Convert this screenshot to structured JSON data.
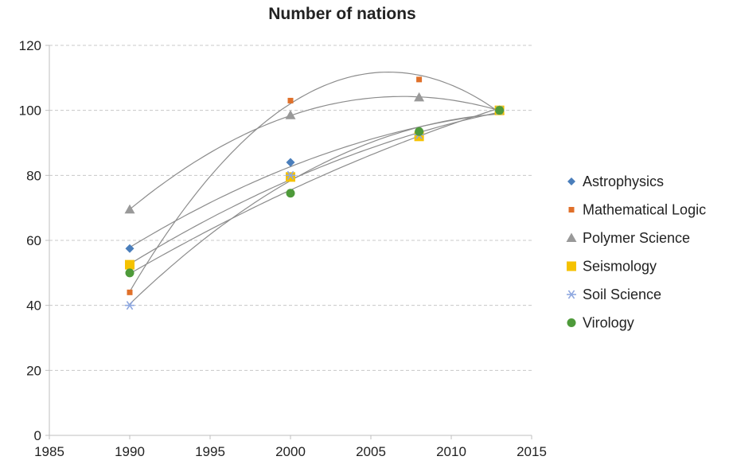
{
  "chart_data": {
    "type": "scatter",
    "title": "Number of nations",
    "xlabel": "",
    "ylabel": "",
    "xlim": [
      1985,
      2015
    ],
    "ylim": [
      0,
      120
    ],
    "xticks": [
      1985,
      1990,
      1995,
      2000,
      2005,
      2010,
      2015
    ],
    "yticks": [
      0,
      20,
      40,
      60,
      80,
      100,
      120
    ],
    "grid": "horizontal dashed",
    "legend_position": "right",
    "trendline": "polynomial order 2",
    "x": [
      1990,
      2000,
      2008,
      2013
    ],
    "series": [
      {
        "name": "Astrophysics",
        "marker": "diamond",
        "color": "#4a7ebb",
        "values": [
          57.5,
          84,
          93,
          100
        ]
      },
      {
        "name": "Mathematical Logic",
        "marker": "square-small",
        "color": "#e0702a",
        "values": [
          44,
          103,
          109.5,
          100
        ]
      },
      {
        "name": "Polymer Science",
        "marker": "triangle",
        "color": "#999999",
        "values": [
          69.5,
          98.5,
          104,
          100
        ]
      },
      {
        "name": "Seismology",
        "marker": "square",
        "color": "#f5c200",
        "values": [
          52.5,
          79.5,
          92,
          100
        ]
      },
      {
        "name": "Soil Science",
        "marker": "asterisk",
        "color": "#8fa8e0",
        "values": [
          40,
          80,
          92.5,
          100
        ]
      },
      {
        "name": "Virology",
        "marker": "circle",
        "color": "#4e9a3a",
        "values": [
          50,
          74.5,
          93.5,
          100
        ]
      }
    ]
  }
}
